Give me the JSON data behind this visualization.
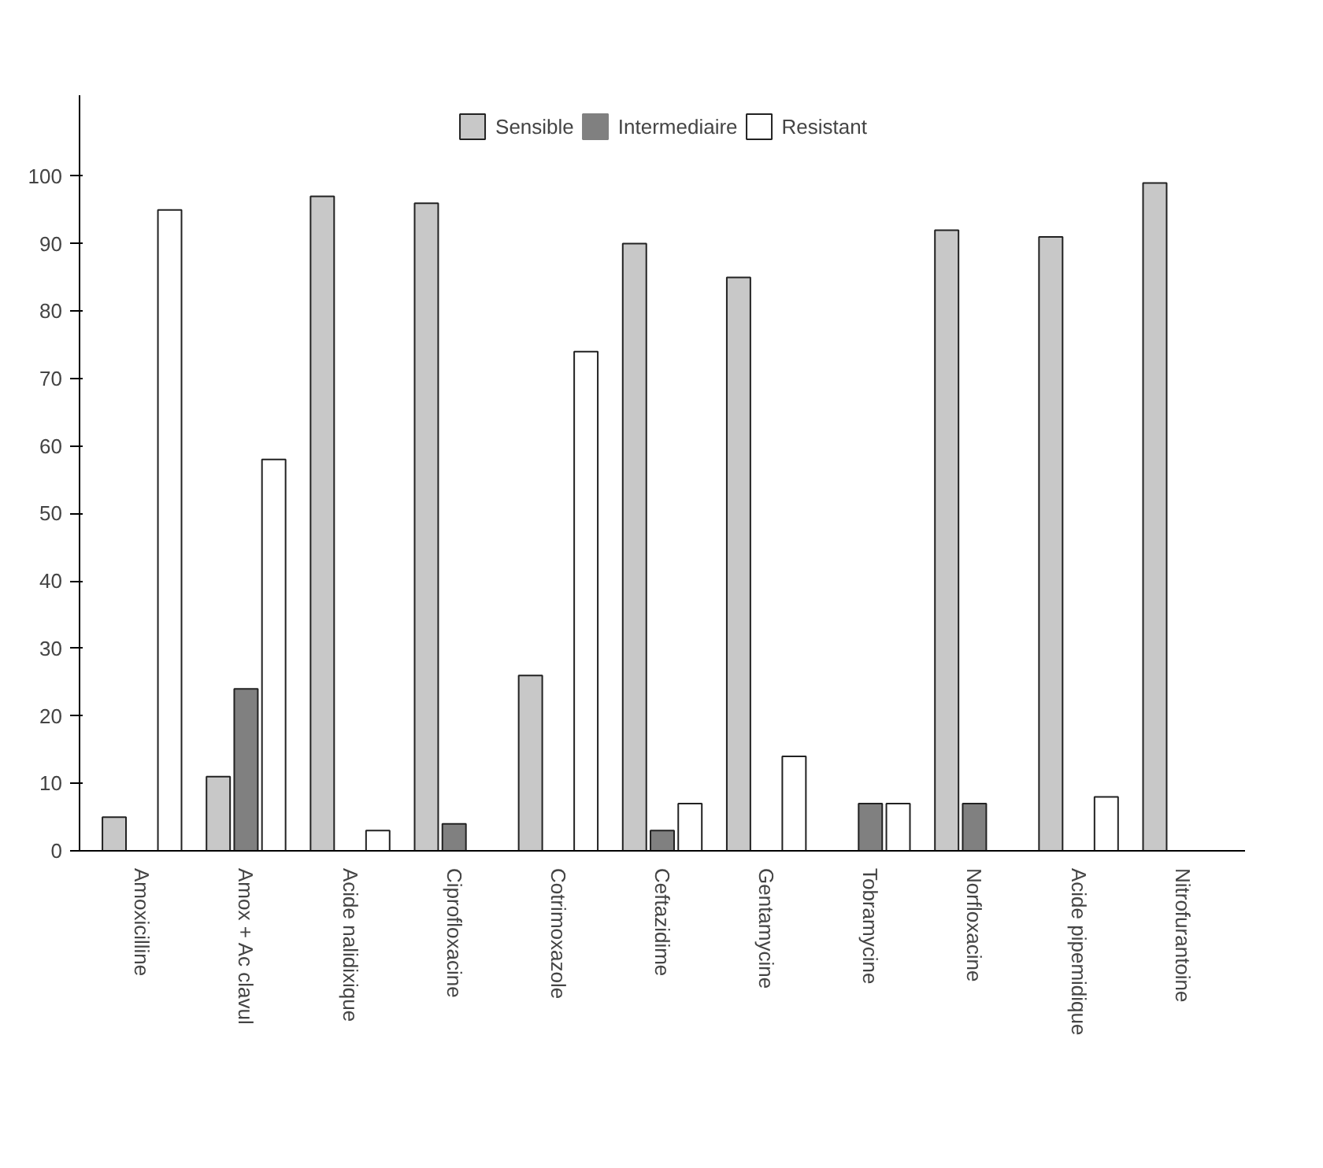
{
  "chart_data": {
    "type": "bar",
    "categories": [
      "Amoxicilline",
      "Amox + Ac clavul",
      "Acide nalidixique",
      "Ciprofloxacine",
      "Cotrimoxazole",
      "Ceftazidime",
      "Gentamycine",
      "Tobramycine",
      "Norfloxacine",
      "Acide pipemidique",
      "Nitrofurantoine"
    ],
    "series": [
      {
        "name": "Sensible",
        "color": "#c8c8c8",
        "values": [
          5,
          11,
          97,
          96,
          26,
          90,
          85,
          0,
          92,
          91,
          99
        ]
      },
      {
        "name": "Intermediaire",
        "color": "#808080",
        "values": [
          0,
          24,
          0,
          4,
          0,
          3,
          0,
          7,
          7,
          0,
          0
        ]
      },
      {
        "name": "Resistant",
        "color": "#ffffff",
        "values": [
          95,
          58,
          3,
          0,
          74,
          7,
          14,
          7,
          0,
          8,
          0
        ]
      }
    ],
    "ylim": [
      0,
      112
    ],
    "yticks": [
      0,
      10,
      20,
      30,
      40,
      50,
      60,
      70,
      80,
      90,
      100
    ],
    "grid": false,
    "legend": "top"
  }
}
